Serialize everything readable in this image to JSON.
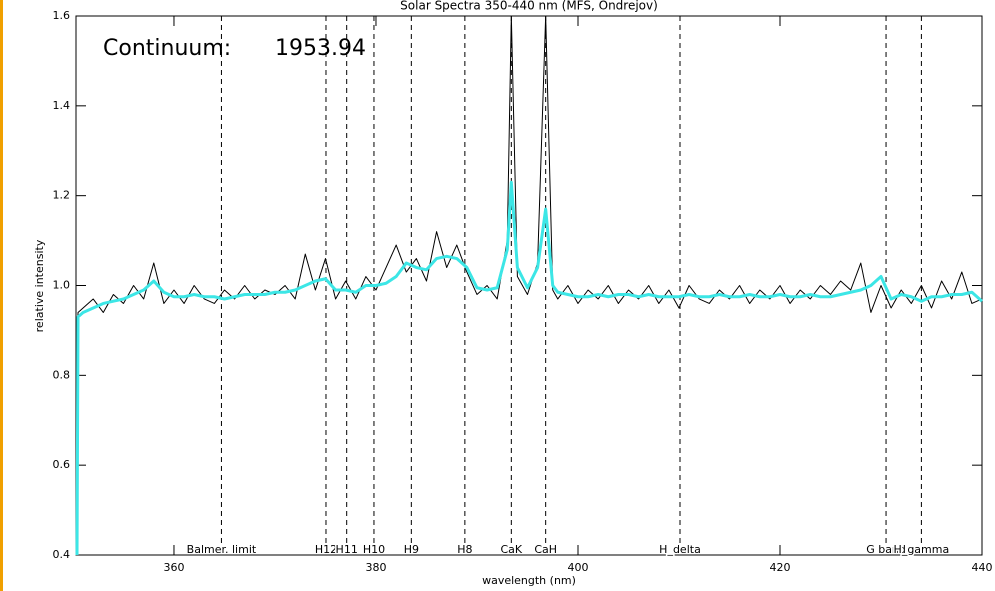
{
  "chart_data": {
    "type": "line",
    "title": "Solar Spectra 350-440 nm (MFS, Ondrejov)",
    "x_label": "wavelength (nm)",
    "y_label": "relative intensity",
    "continuum": {
      "label": "Continuum:",
      "value": 1953.94
    },
    "xlim": [
      350.3,
      440
    ],
    "xticks": [
      360,
      380,
      400,
      420,
      440
    ],
    "ylim": [
      0.4,
      1.6
    ],
    "yticks": [
      0.4,
      0.6,
      0.8,
      {
        "value": 1,
        "label": "1.0"
      },
      1.2,
      1.4,
      1.6
    ],
    "x": [
      350.4,
      350.5,
      351,
      352,
      353,
      354,
      355,
      356,
      357,
      358,
      359,
      360,
      361,
      362,
      363,
      364,
      365,
      366,
      367,
      368,
      369,
      370,
      371,
      372,
      373,
      374,
      375,
      376,
      377,
      378,
      379,
      380,
      381,
      382,
      383,
      384,
      385,
      386,
      387,
      388,
      389,
      390,
      391,
      392,
      393,
      393.4,
      394,
      395,
      396,
      396.8,
      397.5,
      398,
      399,
      400,
      401,
      402,
      403,
      404,
      405,
      406,
      407,
      408,
      409,
      410,
      411,
      412,
      413,
      414,
      415,
      416,
      417,
      418,
      419,
      420,
      421,
      422,
      423,
      424,
      425,
      426,
      427,
      428,
      429,
      430,
      431,
      432,
      433,
      434,
      435,
      436,
      437,
      438,
      439,
      440
    ],
    "series": [
      {
        "color": "#000000",
        "width": 1,
        "values": [
          0.85,
          0.94,
          0.95,
          0.97,
          0.94,
          0.98,
          0.96,
          1.0,
          0.97,
          1.05,
          0.96,
          0.99,
          0.96,
          1.0,
          0.97,
          0.96,
          0.99,
          0.97,
          1.0,
          0.97,
          0.99,
          0.98,
          1.0,
          0.97,
          1.07,
          0.99,
          1.06,
          0.97,
          1.01,
          0.97,
          1.02,
          0.99,
          1.04,
          1.09,
          1.03,
          1.06,
          1.01,
          1.12,
          1.04,
          1.09,
          1.03,
          0.98,
          1.0,
          0.97,
          1.1,
          1.6,
          1.02,
          0.98,
          1.05,
          1.6,
          0.99,
          0.97,
          1.0,
          0.96,
          0.99,
          0.97,
          1.0,
          0.96,
          0.99,
          0.97,
          1.0,
          0.96,
          0.99,
          0.95,
          1.0,
          0.97,
          0.96,
          0.99,
          0.97,
          1.0,
          0.96,
          0.99,
          0.97,
          1.0,
          0.96,
          0.99,
          0.97,
          1.0,
          0.98,
          1.01,
          0.99,
          1.05,
          0.94,
          1.0,
          0.95,
          0.99,
          0.96,
          1.0,
          0.95,
          1.01,
          0.97,
          1.03,
          0.96,
          0.97
        ]
      },
      {
        "color": "#3ce6e6",
        "width": 3,
        "values": [
          0.4,
          0.93,
          0.94,
          0.95,
          0.96,
          0.965,
          0.97,
          0.98,
          0.99,
          1.01,
          0.985,
          0.975,
          0.975,
          0.98,
          0.975,
          0.975,
          0.97,
          0.975,
          0.98,
          0.98,
          0.98,
          0.985,
          0.985,
          0.99,
          1.0,
          1.01,
          1.015,
          0.99,
          0.99,
          0.985,
          1.0,
          1.0,
          1.005,
          1.02,
          1.05,
          1.04,
          1.035,
          1.06,
          1.065,
          1.06,
          1.04,
          0.995,
          0.99,
          0.995,
          1.08,
          1.23,
          1.04,
          0.995,
          1.04,
          1.17,
          1.0,
          0.985,
          0.98,
          0.975,
          0.975,
          0.98,
          0.975,
          0.98,
          0.98,
          0.975,
          0.98,
          0.975,
          0.975,
          0.975,
          0.98,
          0.975,
          0.975,
          0.98,
          0.975,
          0.975,
          0.98,
          0.975,
          0.975,
          0.98,
          0.975,
          0.975,
          0.98,
          0.975,
          0.975,
          0.98,
          0.985,
          0.99,
          1.0,
          1.02,
          0.97,
          0.98,
          0.975,
          0.965,
          0.975,
          0.975,
          0.98,
          0.98,
          0.985,
          0.965
        ]
      }
    ],
    "lines": [
      {
        "label": "Balmer. limit",
        "x": 364.7
      },
      {
        "label": "H12",
        "x": 375.05
      },
      {
        "label": "H11",
        "x": 377.1
      },
      {
        "label": "H10",
        "x": 379.8
      },
      {
        "label": "H9",
        "x": 383.5
      },
      {
        "label": "H8",
        "x": 388.8
      },
      {
        "label": "CaK",
        "x": 393.4
      },
      {
        "label": "CaH",
        "x": 396.8
      },
      {
        "label": "H_delta",
        "x": 410.1
      },
      {
        "label": "G band",
        "x": 430.5
      },
      {
        "label": "H_gamma",
        "x": 434.0
      }
    ]
  }
}
